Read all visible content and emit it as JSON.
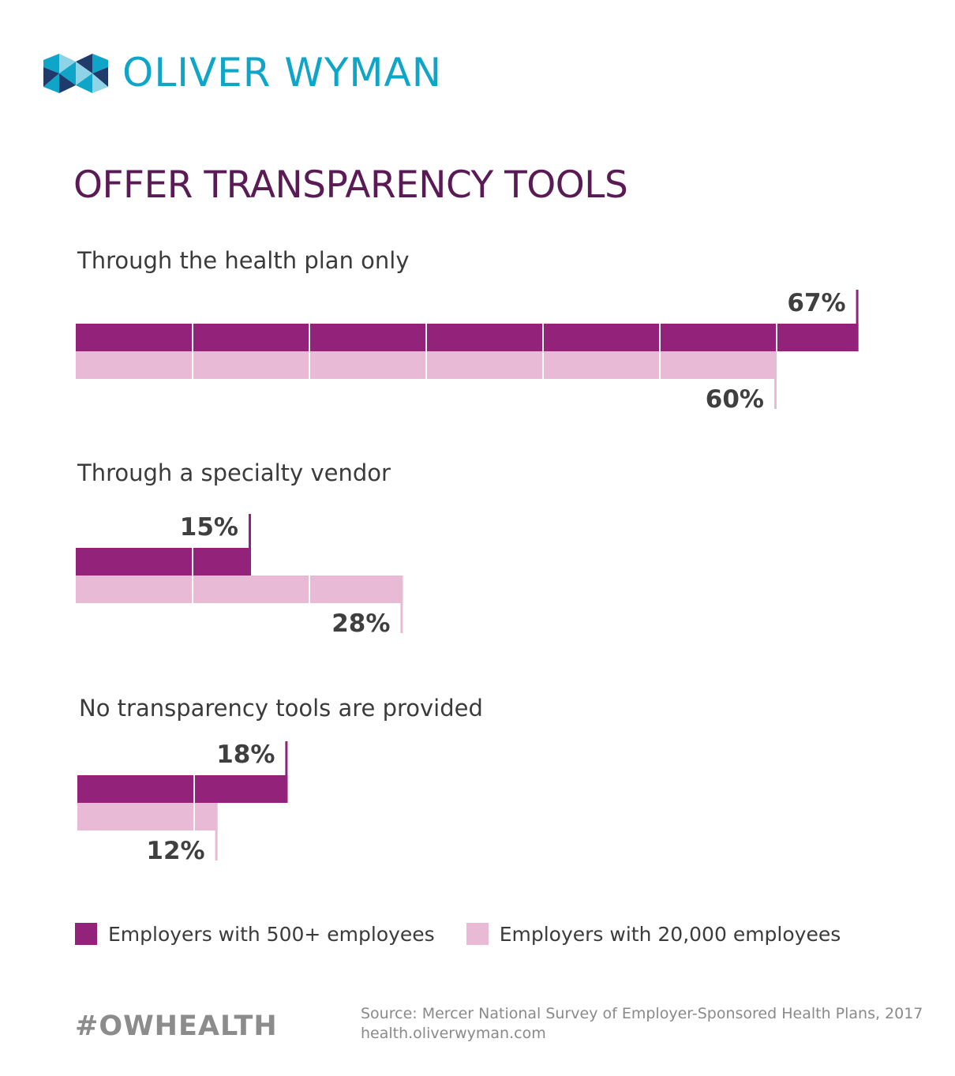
{
  "brand": {
    "name": "OLIVER WYMAN",
    "colors": {
      "cyan": "#0fa5c9",
      "navy": "#1f3a6b",
      "light": "#8fd3e6"
    }
  },
  "chart_data": {
    "type": "bar",
    "orientation": "horizontal",
    "title": "OFFER TRANSPARENCY TOOLS",
    "categories": [
      "Through the health plan only",
      "Through a specialty vendor",
      "No transparency tools are provided"
    ],
    "series": [
      {
        "name": "Employers with 500+ employees",
        "values": [
          67,
          15,
          18
        ],
        "color": "#93237a"
      },
      {
        "name": "Employers with 20,000 employees",
        "values": [
          60,
          28,
          12
        ],
        "color": "#e8bad6"
      }
    ],
    "value_suffix": "%",
    "xlim": [
      0,
      67
    ],
    "grid_step": 10,
    "legend_position": "bottom-left"
  },
  "footer": {
    "hashtag": "#OWHEALTH",
    "source": "Source: Mercer National Survey of Employer-Sponsored Health Plans, 2017",
    "website": "health.oliverwyman.com"
  }
}
